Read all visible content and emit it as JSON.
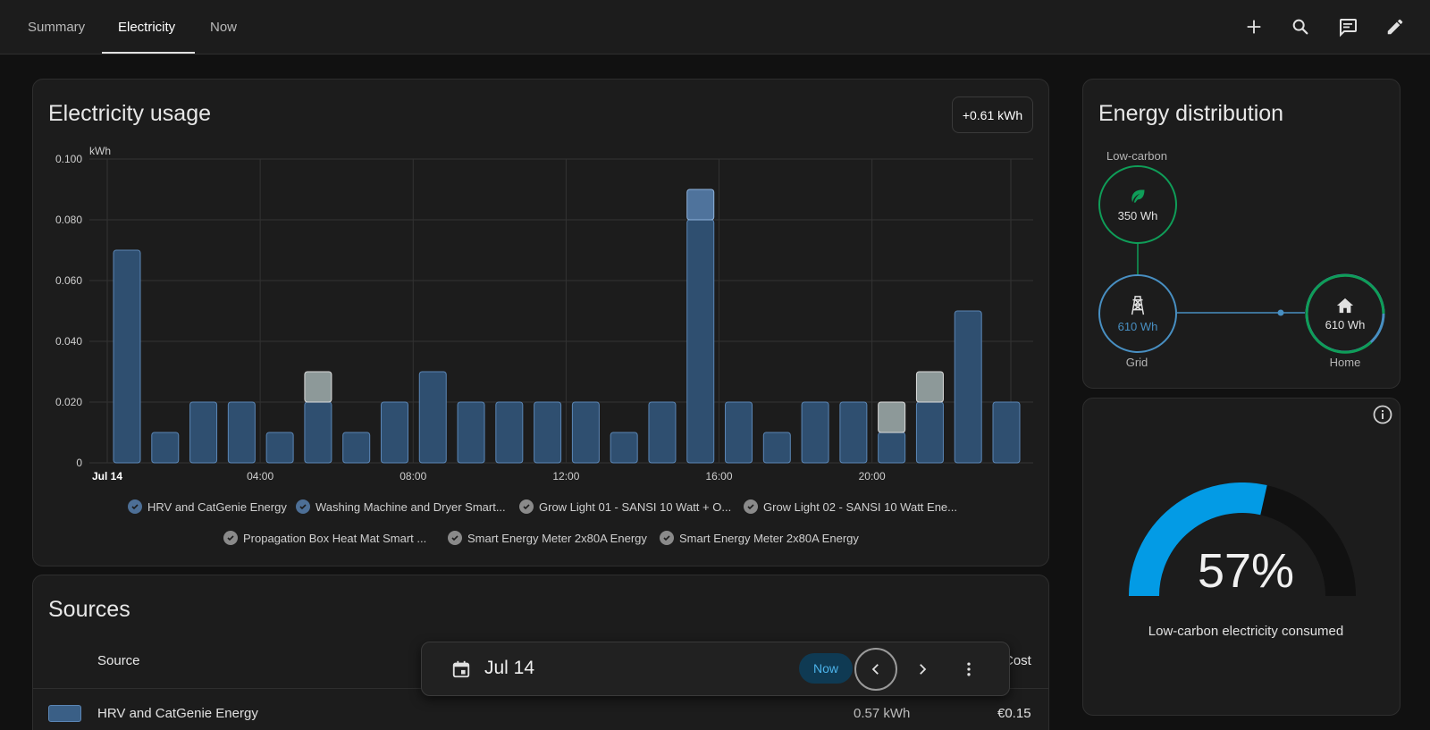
{
  "tabs": [
    {
      "label": "Summary"
    },
    {
      "label": "Electricity"
    },
    {
      "label": "Now"
    }
  ],
  "toolbar_icons": [
    "plus-icon",
    "search-icon",
    "chat-icon",
    "pencil-icon"
  ],
  "usage_card": {
    "title": "Electricity usage",
    "total_badge": "+0.61 kWh"
  },
  "chart_data": {
    "type": "bar",
    "stacked": true,
    "title": "Electricity usage",
    "ylabel": "kWh",
    "ylim": [
      0,
      0.1
    ],
    "y_ticks": [
      "0.100",
      "0.080",
      "0.060",
      "0.040",
      "0.020",
      "0"
    ],
    "x_ticks": [
      "Jul 14",
      "04:00",
      "08:00",
      "12:00",
      "16:00",
      "20:00"
    ],
    "categories": [
      "00:00",
      "01:00",
      "02:00",
      "03:00",
      "04:00",
      "05:00",
      "06:00",
      "07:00",
      "08:00",
      "09:00",
      "10:00",
      "11:00",
      "12:00",
      "13:00",
      "14:00",
      "15:00",
      "16:00",
      "17:00",
      "18:00",
      "19:00",
      "20:00",
      "21:00",
      "22:00",
      "23:00"
    ],
    "series": [
      {
        "name": "HRV and CatGenie Energy",
        "color": "#3a5f86",
        "values": [
          0.07,
          0.01,
          0.02,
          0.02,
          0.01,
          0.02,
          0.01,
          0.02,
          0.03,
          0.02,
          0.02,
          0.02,
          0.02,
          0.01,
          0.02,
          0.08,
          0.02,
          0.01,
          0.02,
          0.02,
          0.01,
          0.02,
          0.05,
          0.02
        ]
      },
      {
        "name": "Washing Machine and Dryer Smart...",
        "color": "#7aa0c8",
        "values": [
          0,
          0,
          0,
          0,
          0,
          0,
          0,
          0,
          0,
          0,
          0,
          0,
          0,
          0,
          0,
          0.01,
          0,
          0,
          0,
          0,
          0,
          0,
          0,
          0
        ]
      },
      {
        "name": "Grow Light 01 - SANSI 10 Watt + O...",
        "color": "#8a9a9a",
        "values": [
          0,
          0,
          0,
          0,
          0,
          0.01,
          0,
          0,
          0,
          0,
          0,
          0,
          0,
          0,
          0,
          0,
          0,
          0,
          0,
          0,
          0.01,
          0.01,
          0,
          0
        ]
      }
    ],
    "legend": [
      {
        "label": "HRV and CatGenie Energy",
        "color": "#4d6f96"
      },
      {
        "label": "Washing Machine and Dryer Smart...",
        "color": "#4d6f96"
      },
      {
        "label": "Grow Light 01 - SANSI 10 Watt + O...",
        "color": "#8a8a8a"
      },
      {
        "label": "Grow Light 02 - SANSI 10 Watt Ene...",
        "color": "#8a8a8a"
      },
      {
        "label": "Propagation Box Heat Mat Smart ...",
        "color": "#8a8a8a"
      },
      {
        "label": "Smart Energy Meter 2x80A Energy",
        "color": "#8a8a8a"
      },
      {
        "label": "Smart Energy Meter 2x80A Energy",
        "color": "#8a8a8a"
      }
    ]
  },
  "sources": {
    "title": "Sources",
    "col_source": "Source",
    "col_cost": "Cost",
    "rows": [
      {
        "name": "HRV and CatGenie Energy",
        "energy": "0.57 kWh",
        "cost": "€0.15"
      }
    ]
  },
  "date_picker": {
    "date": "Jul 14",
    "now_label": "Now"
  },
  "distribution": {
    "title": "Energy distribution",
    "low_carbon_label": "Low-carbon",
    "low_carbon_value": "350 Wh",
    "grid_label": "Grid",
    "grid_value": "610 Wh",
    "home_label": "Home",
    "home_value": "610 Wh",
    "colors": {
      "low_carbon": "#0f9d58",
      "grid": "#488fc2",
      "home": "#0f9d58"
    }
  },
  "gauge": {
    "value_text": "57%",
    "fraction": 0.57,
    "label": "Low-carbon electricity consumed",
    "color": "#039be5"
  }
}
